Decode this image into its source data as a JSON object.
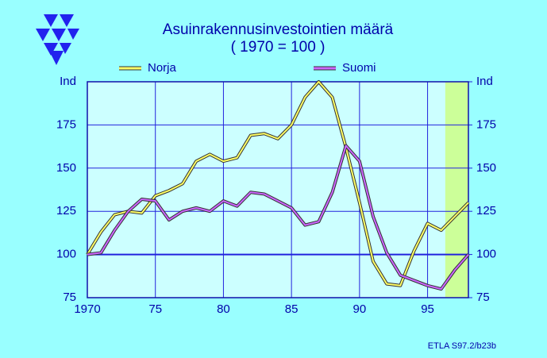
{
  "chart_data": {
    "type": "line",
    "title": "Asuinrakennusinvestointien  määrä",
    "subtitle": "( 1970 = 100 )",
    "x": [
      1970,
      1971,
      1972,
      1973,
      1974,
      1975,
      1976,
      1977,
      1978,
      1979,
      1980,
      1981,
      1982,
      1983,
      1984,
      1985,
      1986,
      1987,
      1988,
      1989,
      1990,
      1991,
      1992,
      1993,
      1994,
      1995,
      1996,
      1997,
      1998
    ],
    "series": [
      {
        "name": "Norja",
        "color": "#ffff66",
        "values": [
          100,
          113,
          123,
          125,
          124,
          134,
          137,
          141,
          154,
          158,
          154,
          156,
          169,
          170,
          167,
          175,
          191,
          200,
          191,
          162,
          130,
          96,
          83,
          82,
          102,
          118,
          114,
          122,
          130
        ]
      },
      {
        "name": "Suomi",
        "color": "#cc66ff",
        "values": [
          100,
          101,
          114,
          125,
          132,
          131,
          120,
          125,
          127,
          125,
          131,
          128,
          136,
          135,
          131,
          127,
          117,
          119,
          136,
          163,
          154,
          122,
          101,
          88,
          85,
          82,
          80,
          91,
          100
        ]
      }
    ],
    "xlim": [
      1970,
      1998
    ],
    "xticks": [
      1970,
      {
        "value": 1975,
        "label": "75"
      },
      {
        "value": 1980,
        "label": "80"
      },
      {
        "value": 1985,
        "label": "85"
      },
      {
        "value": 1990,
        "label": "90"
      },
      {
        "value": 1995,
        "label": "95"
      }
    ],
    "ylim": [
      75,
      200
    ],
    "yticks": [
      75,
      100,
      125,
      150,
      175,
      {
        "value": 200,
        "label": "Ind"
      }
    ],
    "y2lim": [
      75,
      200
    ],
    "y2ticks": [
      75,
      100,
      125,
      150,
      175,
      {
        "value": 200,
        "label": "Ind"
      }
    ],
    "grid": true,
    "shaded_xlim": [
      1996.3,
      1998
    ],
    "shaded_color": "#ccff99",
    "footer": "ETLA S97.2/b23b"
  }
}
